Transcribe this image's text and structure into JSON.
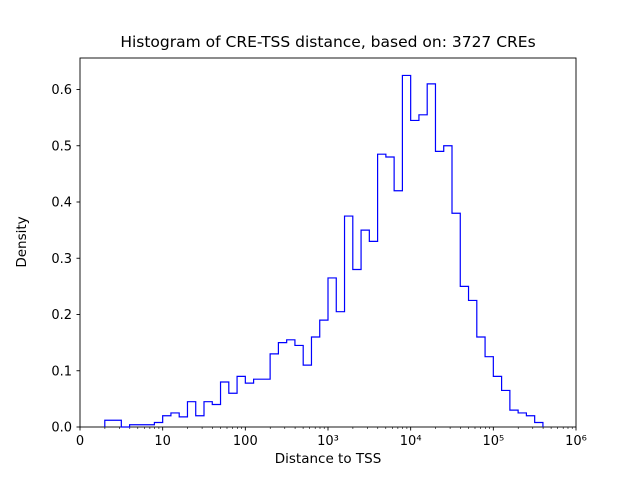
{
  "chart_data": {
    "type": "histogram-step",
    "title": "Histogram of CRE-TSS distance, based on: 3727 CREs",
    "xlabel": "Distance to TSS",
    "ylabel": "Density",
    "x_scale": "log",
    "xlim_log10": [
      0,
      6
    ],
    "ylim": [
      0,
      0.656
    ],
    "x_tick_positions_log10": [
      0,
      1,
      2,
      3,
      4,
      5,
      6
    ],
    "x_tick_labels": [
      "0",
      "10",
      "100",
      "10³",
      "10⁴",
      "10⁵",
      "10⁶"
    ],
    "y_ticks": [
      0.0,
      0.1,
      0.2,
      0.3,
      0.4,
      0.5,
      0.6
    ],
    "y_tick_labels": [
      "0.0",
      "0.1",
      "0.2",
      "0.3",
      "0.4",
      "0.5",
      "0.6"
    ],
    "line_color": "#0000ff",
    "frame_color": "#000000",
    "n_cres": 3727,
    "bin_edges_log10": {
      "start": 0.3,
      "step": 0.1,
      "count": 53
    },
    "densities": [
      0.012,
      0.012,
      0.0,
      0.004,
      0.004,
      0.004,
      0.008,
      0.02,
      0.025,
      0.018,
      0.045,
      0.02,
      0.045,
      0.04,
      0.08,
      0.06,
      0.09,
      0.078,
      0.085,
      0.085,
      0.13,
      0.15,
      0.155,
      0.145,
      0.11,
      0.16,
      0.19,
      0.265,
      0.205,
      0.375,
      0.28,
      0.35,
      0.33,
      0.485,
      0.48,
      0.42,
      0.625,
      0.545,
      0.555,
      0.61,
      0.49,
      0.5,
      0.38,
      0.25,
      0.225,
      0.16,
      0.125,
      0.09,
      0.065,
      0.03,
      0.025,
      0.02,
      0.008
    ]
  }
}
